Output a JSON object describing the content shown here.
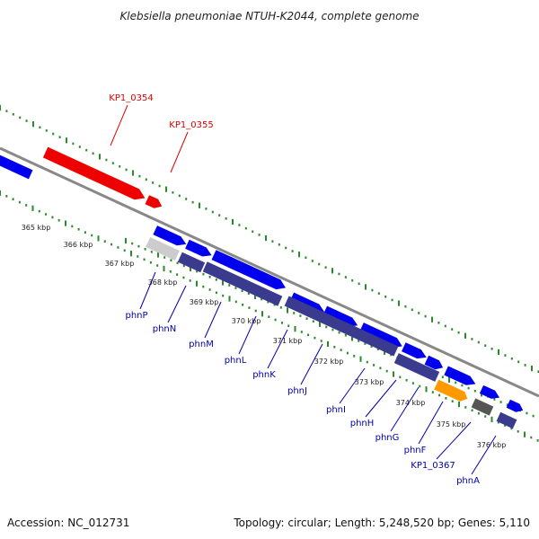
{
  "title": "Klebsiella pneumoniae NTUH-K2044, complete genome",
  "footer": {
    "accession": "Accession: NC_012731",
    "summary": "Topology: circular; Length: 5,248,520 bp; Genes: 5,110"
  },
  "kbp_labels": [
    "365 kbp",
    "366 kbp",
    "367 kbp",
    "368 kbp",
    "369 kbp",
    "370 kbp",
    "371 kbp",
    "372 kbp",
    "373 kbp",
    "374 kbp",
    "375 kbp",
    "376 kbp"
  ],
  "upper_labels": [
    "KP1_0354",
    "KP1_0355"
  ],
  "lower_labels": [
    "phnP",
    "phnN",
    "phnM",
    "phnL",
    "phnK",
    "phnJ",
    "phnI",
    "phnH",
    "phnG",
    "phnF",
    "KP1_0367",
    "phnA"
  ],
  "colors": {
    "forward_gene": "#0000ee",
    "highlight_gene": "#ee0000",
    "operon_band": "#3a3a8e",
    "grey_gene": "#cccccc",
    "orange_gene": "#ff9900",
    "dark_gene": "#555555",
    "backbone": "#888888",
    "tick": "#2a8a2a",
    "upper_label": "#dd0000",
    "lower_label": "#0000aa"
  }
}
